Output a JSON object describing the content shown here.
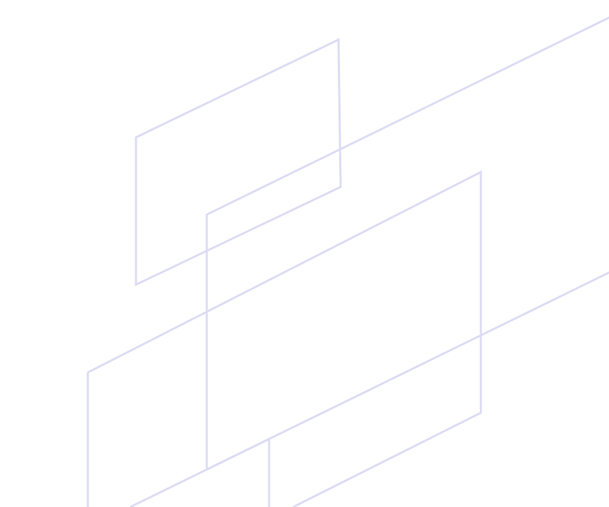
{
  "background_color": "#ffffff",
  "line_color": "#dcdcf4",
  "motif": {
    "shapes": [
      "small-parallelogram",
      "long-diagonal-band",
      "large-parallelogram",
      "lower-diagonal-band",
      "bottom-partial-shape"
    ]
  }
}
